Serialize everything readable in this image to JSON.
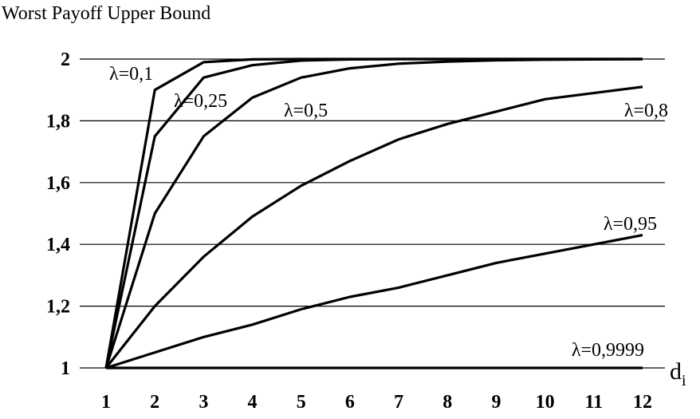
{
  "chart_data": {
    "type": "line",
    "ylabel": "Worst Payoff Upper Bound",
    "xlabel": "d",
    "xlabel_subscript": "i",
    "x": [
      1,
      2,
      3,
      4,
      5,
      6,
      7,
      8,
      9,
      10,
      11,
      12
    ],
    "x_tick_labels": [
      "1",
      "2",
      "3",
      "4",
      "5",
      "6",
      "7",
      "8",
      "9",
      "10",
      "11",
      "12"
    ],
    "xlim": [
      1,
      12
    ],
    "ylim": [
      1,
      2
    ],
    "y_ticks": [
      1,
      1.2,
      1.4,
      1.6,
      1.8,
      2
    ],
    "y_tick_labels": [
      "1",
      "1,2",
      "1,4",
      "1,6",
      "1,8",
      "2"
    ],
    "grid": "horizontal",
    "series": [
      {
        "name": "λ=0,1",
        "values": [
          1,
          1.9,
          1.99,
          1.999,
          2,
          2,
          2,
          2,
          2,
          2,
          2,
          2
        ]
      },
      {
        "name": "λ=0,25",
        "values": [
          1,
          1.75,
          1.94,
          1.98,
          1.995,
          1.999,
          2,
          2,
          2,
          2,
          2,
          2
        ]
      },
      {
        "name": "λ=0,5",
        "values": [
          1,
          1.5,
          1.75,
          1.875,
          1.94,
          1.97,
          1.985,
          1.992,
          1.996,
          1.998,
          1.999,
          2
        ]
      },
      {
        "name": "λ=0,8",
        "values": [
          1,
          1.2,
          1.36,
          1.49,
          1.59,
          1.67,
          1.74,
          1.79,
          1.83,
          1.87,
          1.89,
          1.91
        ]
      },
      {
        "name": "λ=0,95",
        "values": [
          1,
          1.05,
          1.1,
          1.14,
          1.19,
          1.23,
          1.26,
          1.3,
          1.34,
          1.37,
          1.4,
          1.43
        ]
      },
      {
        "name": "λ=0,9999",
        "values": [
          1,
          1,
          1,
          1,
          1,
          1,
          1,
          1,
          1,
          1,
          1,
          1
        ]
      }
    ]
  }
}
